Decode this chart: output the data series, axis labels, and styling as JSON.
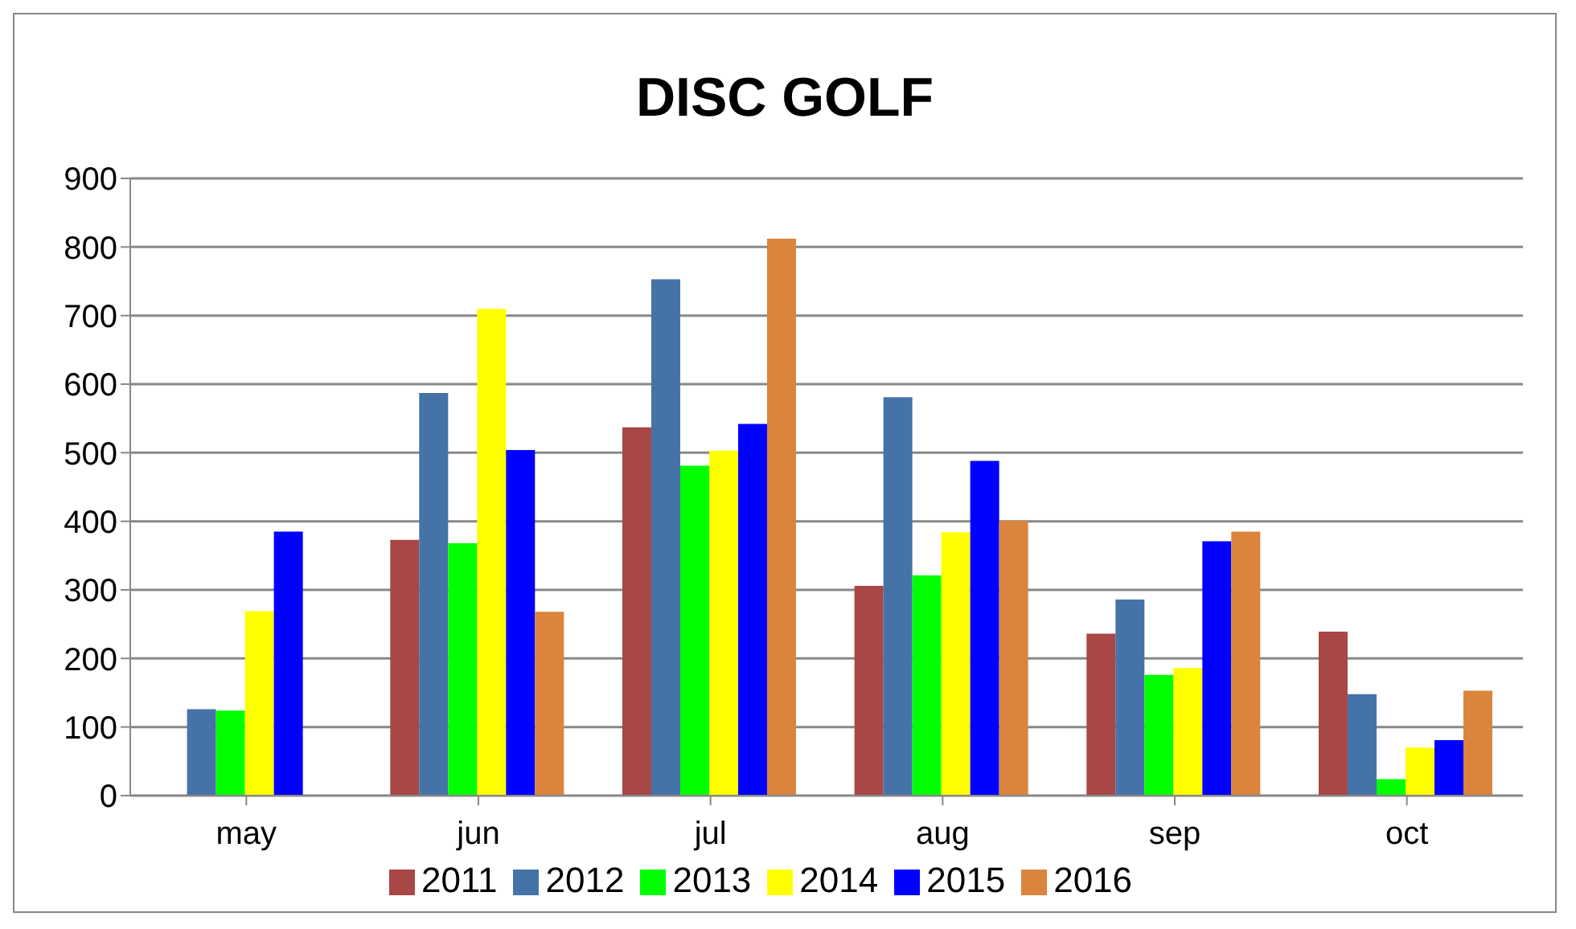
{
  "chart_data": {
    "type": "bar",
    "title": "DISC GOLF",
    "categories": [
      "may",
      "jun",
      "jul",
      "aug",
      "sep",
      "oct"
    ],
    "series": [
      {
        "name": "2011",
        "color": "#a84745",
        "values": [
          null,
          373,
          537,
          306,
          236,
          239
        ]
      },
      {
        "name": "2012",
        "color": "#4573a7",
        "values": [
          126,
          587,
          753,
          581,
          286,
          148
        ]
      },
      {
        "name": "2013",
        "color": "#00ff00",
        "values": [
          124,
          368,
          481,
          321,
          176,
          24
        ]
      },
      {
        "name": "2014",
        "color": "#ffff00",
        "values": [
          269,
          710,
          503,
          384,
          186,
          70
        ]
      },
      {
        "name": "2015",
        "color": "#0000ff",
        "values": [
          385,
          504,
          542,
          488,
          371,
          81
        ]
      },
      {
        "name": "2016",
        "color": "#db843d",
        "values": [
          null,
          268,
          812,
          401,
          385,
          153
        ]
      }
    ],
    "ylim": [
      0,
      900
    ],
    "yticks": [
      0,
      100,
      200,
      300,
      400,
      500,
      600,
      700,
      800,
      900
    ],
    "grid": "y",
    "legend": "bottom"
  }
}
